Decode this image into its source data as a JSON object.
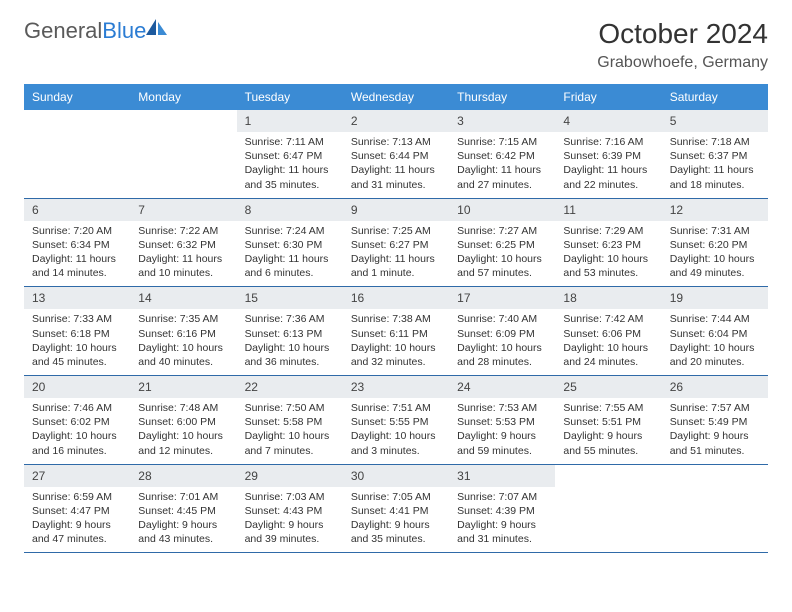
{
  "logo": {
    "part1": "General",
    "part2": "Blue"
  },
  "title": "October 2024",
  "location": "Grabowhoefe, Germany",
  "colors": {
    "header_bg": "#3b8bd4",
    "header_text": "#ffffff",
    "daynum_bg": "#e9ecef",
    "border": "#2f6aa8",
    "logo_gray": "#5a5a5a",
    "logo_blue": "#2b7cd3"
  },
  "day_names": [
    "Sunday",
    "Monday",
    "Tuesday",
    "Wednesday",
    "Thursday",
    "Friday",
    "Saturday"
  ],
  "weeks": [
    [
      null,
      null,
      {
        "n": "1",
        "sunrise": "7:11 AM",
        "sunset": "6:47 PM",
        "daylight": "11 hours and 35 minutes."
      },
      {
        "n": "2",
        "sunrise": "7:13 AM",
        "sunset": "6:44 PM",
        "daylight": "11 hours and 31 minutes."
      },
      {
        "n": "3",
        "sunrise": "7:15 AM",
        "sunset": "6:42 PM",
        "daylight": "11 hours and 27 minutes."
      },
      {
        "n": "4",
        "sunrise": "7:16 AM",
        "sunset": "6:39 PM",
        "daylight": "11 hours and 22 minutes."
      },
      {
        "n": "5",
        "sunrise": "7:18 AM",
        "sunset": "6:37 PM",
        "daylight": "11 hours and 18 minutes."
      }
    ],
    [
      {
        "n": "6",
        "sunrise": "7:20 AM",
        "sunset": "6:34 PM",
        "daylight": "11 hours and 14 minutes."
      },
      {
        "n": "7",
        "sunrise": "7:22 AM",
        "sunset": "6:32 PM",
        "daylight": "11 hours and 10 minutes."
      },
      {
        "n": "8",
        "sunrise": "7:24 AM",
        "sunset": "6:30 PM",
        "daylight": "11 hours and 6 minutes."
      },
      {
        "n": "9",
        "sunrise": "7:25 AM",
        "sunset": "6:27 PM",
        "daylight": "11 hours and 1 minute."
      },
      {
        "n": "10",
        "sunrise": "7:27 AM",
        "sunset": "6:25 PM",
        "daylight": "10 hours and 57 minutes."
      },
      {
        "n": "11",
        "sunrise": "7:29 AM",
        "sunset": "6:23 PM",
        "daylight": "10 hours and 53 minutes."
      },
      {
        "n": "12",
        "sunrise": "7:31 AM",
        "sunset": "6:20 PM",
        "daylight": "10 hours and 49 minutes."
      }
    ],
    [
      {
        "n": "13",
        "sunrise": "7:33 AM",
        "sunset": "6:18 PM",
        "daylight": "10 hours and 45 minutes."
      },
      {
        "n": "14",
        "sunrise": "7:35 AM",
        "sunset": "6:16 PM",
        "daylight": "10 hours and 40 minutes."
      },
      {
        "n": "15",
        "sunrise": "7:36 AM",
        "sunset": "6:13 PM",
        "daylight": "10 hours and 36 minutes."
      },
      {
        "n": "16",
        "sunrise": "7:38 AM",
        "sunset": "6:11 PM",
        "daylight": "10 hours and 32 minutes."
      },
      {
        "n": "17",
        "sunrise": "7:40 AM",
        "sunset": "6:09 PM",
        "daylight": "10 hours and 28 minutes."
      },
      {
        "n": "18",
        "sunrise": "7:42 AM",
        "sunset": "6:06 PM",
        "daylight": "10 hours and 24 minutes."
      },
      {
        "n": "19",
        "sunrise": "7:44 AM",
        "sunset": "6:04 PM",
        "daylight": "10 hours and 20 minutes."
      }
    ],
    [
      {
        "n": "20",
        "sunrise": "7:46 AM",
        "sunset": "6:02 PM",
        "daylight": "10 hours and 16 minutes."
      },
      {
        "n": "21",
        "sunrise": "7:48 AM",
        "sunset": "6:00 PM",
        "daylight": "10 hours and 12 minutes."
      },
      {
        "n": "22",
        "sunrise": "7:50 AM",
        "sunset": "5:58 PM",
        "daylight": "10 hours and 7 minutes."
      },
      {
        "n": "23",
        "sunrise": "7:51 AM",
        "sunset": "5:55 PM",
        "daylight": "10 hours and 3 minutes."
      },
      {
        "n": "24",
        "sunrise": "7:53 AM",
        "sunset": "5:53 PM",
        "daylight": "9 hours and 59 minutes."
      },
      {
        "n": "25",
        "sunrise": "7:55 AM",
        "sunset": "5:51 PM",
        "daylight": "9 hours and 55 minutes."
      },
      {
        "n": "26",
        "sunrise": "7:57 AM",
        "sunset": "5:49 PM",
        "daylight": "9 hours and 51 minutes."
      }
    ],
    [
      {
        "n": "27",
        "sunrise": "6:59 AM",
        "sunset": "4:47 PM",
        "daylight": "9 hours and 47 minutes."
      },
      {
        "n": "28",
        "sunrise": "7:01 AM",
        "sunset": "4:45 PM",
        "daylight": "9 hours and 43 minutes."
      },
      {
        "n": "29",
        "sunrise": "7:03 AM",
        "sunset": "4:43 PM",
        "daylight": "9 hours and 39 minutes."
      },
      {
        "n": "30",
        "sunrise": "7:05 AM",
        "sunset": "4:41 PM",
        "daylight": "9 hours and 35 minutes."
      },
      {
        "n": "31",
        "sunrise": "7:07 AM",
        "sunset": "4:39 PM",
        "daylight": "9 hours and 31 minutes."
      },
      null,
      null
    ]
  ],
  "labels": {
    "sunrise": "Sunrise:",
    "sunset": "Sunset:",
    "daylight": "Daylight:"
  }
}
